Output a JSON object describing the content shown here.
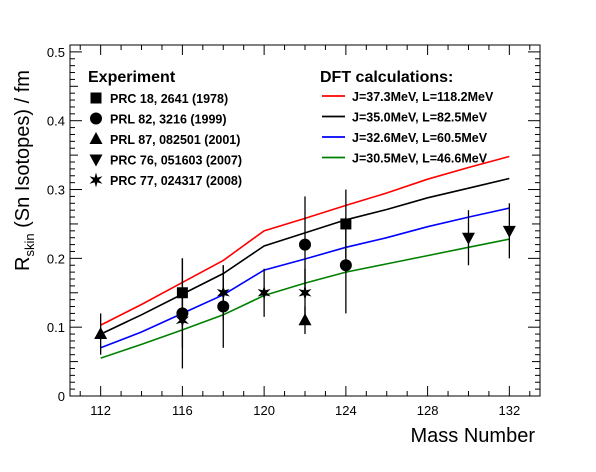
{
  "chart_data": {
    "type": "scatter",
    "xlabel": "Mass Number",
    "ylabel_main": "R",
    "ylabel_sub": "skin",
    "ylabel_rest": " (Sn Isotopes) / fm",
    "xlim": [
      110.5,
      133.5
    ],
    "ylim": [
      0,
      0.51
    ],
    "x_ticks": [
      "112",
      "116",
      "120",
      "124",
      "128",
      "132"
    ],
    "y_ticks": [
      "0",
      "0.1",
      "0.2",
      "0.3",
      "0.4",
      "0.5"
    ],
    "grid": false,
    "experiment_legend_title": "Experiment",
    "dft_legend_title": "DFT calculations:",
    "experiments": [
      {
        "name": "PRC 18, 2641 (1978)",
        "marker": "square",
        "points": [
          {
            "x": 116,
            "y": 0.15,
            "err": 0.05
          },
          {
            "x": 124,
            "y": 0.25,
            "err": 0.05
          }
        ]
      },
      {
        "name": "PRL 82, 3216 (1999)",
        "marker": "circle",
        "points": [
          {
            "x": 116,
            "y": 0.12,
            "err": 0.08
          },
          {
            "x": 118,
            "y": 0.13,
            "err": 0.06
          },
          {
            "x": 122,
            "y": 0.22,
            "err": 0.07
          },
          {
            "x": 124,
            "y": 0.19,
            "err": 0.07
          }
        ]
      },
      {
        "name": "PRL 87, 082501 (2001)",
        "marker": "triangle-up",
        "points": [
          {
            "x": 112,
            "y": 0.09,
            "err": 0.03
          },
          {
            "x": 122,
            "y": 0.11,
            "err": 0.02
          }
        ]
      },
      {
        "name": "PRC 76, 051603 (2007)",
        "marker": "triangle-down",
        "points": [
          {
            "x": 130,
            "y": 0.23,
            "err": 0.04
          },
          {
            "x": 132,
            "y": 0.24,
            "err": 0.04
          }
        ]
      },
      {
        "name": "PRC 77, 024317 (2008)",
        "marker": "star",
        "points": [
          {
            "x": 116,
            "y": 0.11,
            "err": 0.04
          },
          {
            "x": 118,
            "y": 0.15,
            "err": 0.04
          },
          {
            "x": 120,
            "y": 0.15,
            "err": 0.035
          },
          {
            "x": 122,
            "y": 0.15,
            "err": 0.035
          }
        ]
      }
    ],
    "series": [
      {
        "name": "J=37.3MeV, L=118.2MeV",
        "color": "#ff0000",
        "x": [
          112,
          114,
          116,
          118,
          120,
          122,
          124,
          126,
          128,
          130,
          132
        ],
        "y": [
          0.103,
          0.133,
          0.165,
          0.197,
          0.24,
          0.258,
          0.277,
          0.295,
          0.315,
          0.332,
          0.348
        ]
      },
      {
        "name": "J=35.0MeV, L=82.5MeV",
        "color": "#000000",
        "x": [
          112,
          114,
          116,
          118,
          120,
          122,
          124,
          126,
          128,
          130,
          132
        ],
        "y": [
          0.09,
          0.118,
          0.148,
          0.178,
          0.218,
          0.237,
          0.256,
          0.271,
          0.288,
          0.302,
          0.316
        ]
      },
      {
        "name": "J=32.6MeV, L=60.5MeV",
        "color": "#0000ff",
        "x": [
          112,
          114,
          116,
          118,
          120,
          122,
          124,
          126,
          128,
          130,
          132
        ],
        "y": [
          0.07,
          0.093,
          0.12,
          0.147,
          0.183,
          0.199,
          0.216,
          0.23,
          0.246,
          0.26,
          0.273
        ]
      },
      {
        "name": "J=30.5MeV, L=46.6MeV",
        "color": "#008000",
        "x": [
          112,
          114,
          116,
          118,
          120,
          122,
          124,
          126,
          128,
          130,
          132
        ],
        "y": [
          0.055,
          0.075,
          0.096,
          0.118,
          0.146,
          0.164,
          0.18,
          0.192,
          0.204,
          0.216,
          0.228
        ]
      }
    ]
  }
}
